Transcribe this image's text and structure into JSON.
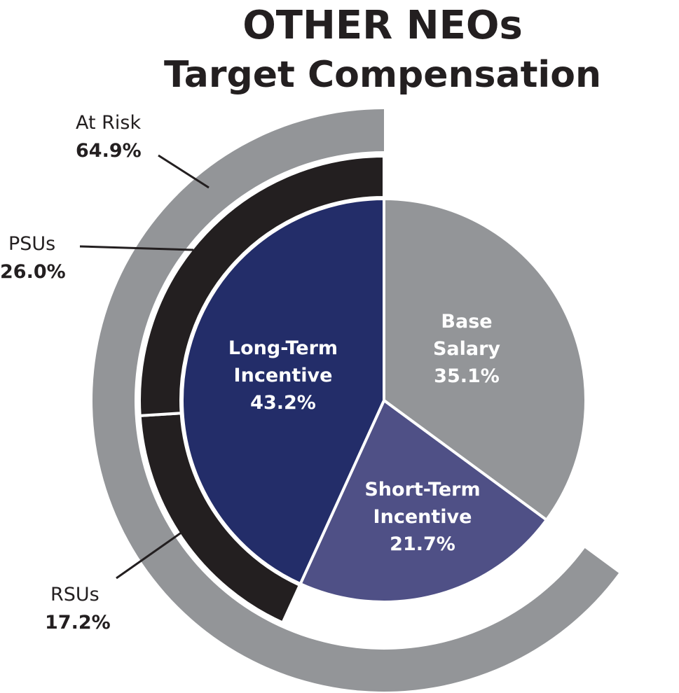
{
  "chart_data": {
    "type": "pie",
    "title_line1": "OTHER NEOs",
    "title_line2": "Target Compensation",
    "slices": [
      {
        "name": "Base Salary",
        "line1": "Base",
        "line2": "Salary",
        "value_label": "35.1%",
        "value": 35.1,
        "color": "#939598"
      },
      {
        "name": "Short-Term Incentive",
        "line1": "Short-Term",
        "line2": "Incentive",
        "value_label": "21.7%",
        "value": 21.7,
        "color": "#4f5086"
      },
      {
        "name": "Long-Term Incentive",
        "line1": "Long-Term",
        "line2": "Incentive",
        "value_label": "43.2%",
        "value": 43.2,
        "color": "#232d69"
      }
    ],
    "ltip_ring": [
      {
        "name": "PSUs",
        "value_label": "26.0%",
        "value": 26.0,
        "color": "#231f20"
      },
      {
        "name": "RSUs",
        "value_label": "17.2%",
        "value": 17.2,
        "color": "#231f20"
      }
    ],
    "at_risk_ring": {
      "name": "At Risk",
      "value_label": "64.9%",
      "value": 64.9,
      "color": "#939598"
    }
  }
}
